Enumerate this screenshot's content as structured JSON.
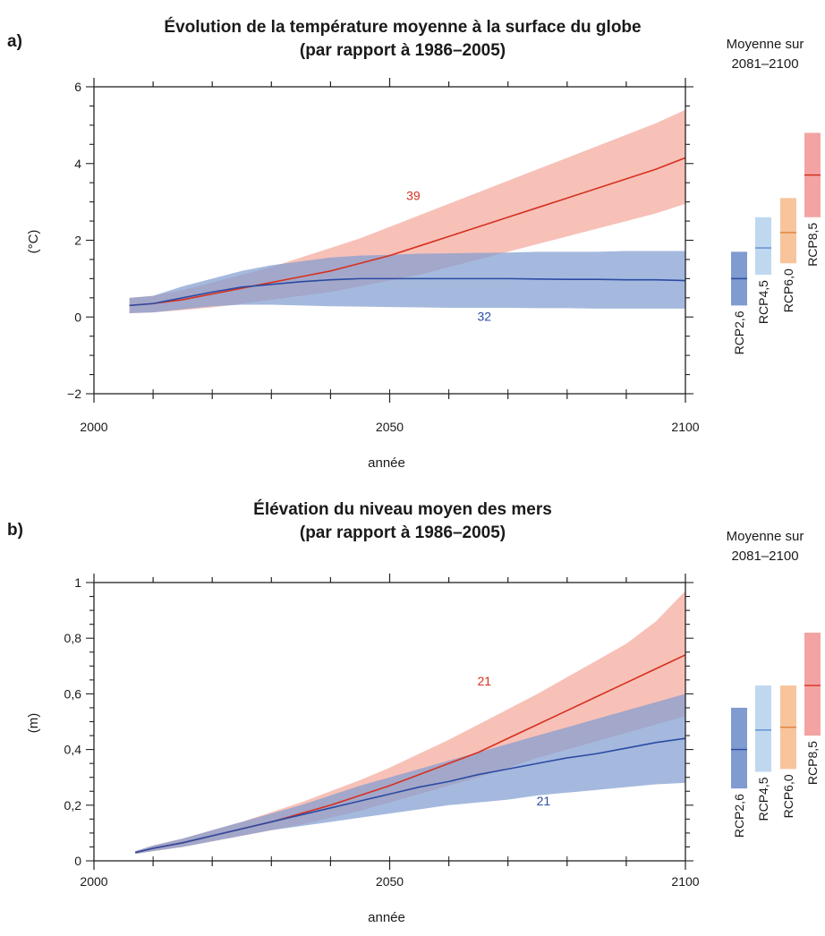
{
  "chart_data": [
    {
      "id": "a",
      "type": "area",
      "panel_label": "a)",
      "title_line1": "Évolution de la température moyenne à la surface du globe",
      "title_line2": "(par rapport à 1986–2005)",
      "xlabel": "année",
      "ylabel": "(°C)",
      "xlim": [
        2000,
        2100
      ],
      "ylim": [
        -2,
        6
      ],
      "xticks": [
        2000,
        2050,
        2100
      ],
      "xtick_labels": [
        "2000",
        "2050",
        "2100"
      ],
      "yticks": [
        -2,
        0,
        2,
        4,
        6
      ],
      "ytick_labels": [
        "−2",
        "0",
        "2",
        "4",
        "6"
      ],
      "series": [
        {
          "scenario": "RCP8.5",
          "color": "#d7301f",
          "band_color": "#f4a79a",
          "count_label": "39",
          "count_at": [
            2054,
            3.05
          ],
          "x": [
            2006,
            2010,
            2015,
            2020,
            2025,
            2030,
            2035,
            2040,
            2045,
            2050,
            2055,
            2060,
            2065,
            2070,
            2075,
            2080,
            2085,
            2090,
            2095,
            2100
          ],
          "mean": [
            0.3,
            0.35,
            0.45,
            0.6,
            0.75,
            0.9,
            1.05,
            1.2,
            1.4,
            1.6,
            1.85,
            2.1,
            2.35,
            2.6,
            2.85,
            3.1,
            3.35,
            3.6,
            3.85,
            4.15
          ],
          "low": [
            0.1,
            0.12,
            0.18,
            0.25,
            0.35,
            0.45,
            0.55,
            0.65,
            0.8,
            0.95,
            1.1,
            1.3,
            1.5,
            1.7,
            1.9,
            2.1,
            2.3,
            2.5,
            2.7,
            2.95
          ],
          "high": [
            0.5,
            0.55,
            0.7,
            0.9,
            1.1,
            1.3,
            1.55,
            1.8,
            2.05,
            2.35,
            2.65,
            2.95,
            3.25,
            3.55,
            3.85,
            4.15,
            4.45,
            4.75,
            5.05,
            5.4
          ]
        },
        {
          "scenario": "RCP2.6",
          "color": "#2b4ba3",
          "band_color": "#7f9bd0",
          "count_label": "32",
          "count_at": [
            2066,
            -0.1
          ],
          "x": [
            2006,
            2010,
            2015,
            2020,
            2025,
            2030,
            2035,
            2040,
            2045,
            2050,
            2055,
            2060,
            2065,
            2070,
            2075,
            2080,
            2085,
            2090,
            2095,
            2100
          ],
          "mean": [
            0.3,
            0.35,
            0.5,
            0.65,
            0.78,
            0.85,
            0.92,
            0.97,
            1.0,
            1.0,
            1.0,
            1.0,
            1.0,
            1.0,
            0.99,
            0.98,
            0.98,
            0.97,
            0.97,
            0.95
          ],
          "low": [
            0.1,
            0.12,
            0.2,
            0.28,
            0.32,
            0.32,
            0.3,
            0.28,
            0.27,
            0.26,
            0.25,
            0.24,
            0.24,
            0.24,
            0.23,
            0.23,
            0.22,
            0.22,
            0.22,
            0.22
          ],
          "high": [
            0.5,
            0.55,
            0.8,
            1.0,
            1.2,
            1.35,
            1.45,
            1.55,
            1.6,
            1.62,
            1.65,
            1.66,
            1.67,
            1.68,
            1.7,
            1.7,
            1.7,
            1.72,
            1.72,
            1.72
          ]
        }
      ],
      "side_title_line1": "Moyenne sur",
      "side_title_line2": "2081–2100",
      "side_bars": [
        {
          "label": "RCP2,6",
          "low": 0.3,
          "high": 1.7,
          "mean": 1.0,
          "color": "#7f9bd0",
          "line": "#2b4ba3"
        },
        {
          "label": "RCP4,5",
          "low": 1.1,
          "high": 2.6,
          "mean": 1.8,
          "color": "#bfd8ef",
          "line": "#5a8ccf"
        },
        {
          "label": "RCP6,0",
          "low": 1.4,
          "high": 3.1,
          "mean": 2.2,
          "color": "#f8c49c",
          "line": "#e08040"
        },
        {
          "label": "RCP8,5",
          "low": 2.6,
          "high": 4.8,
          "mean": 3.7,
          "color": "#f4a3a3",
          "line": "#d7301f"
        }
      ]
    },
    {
      "id": "b",
      "type": "area",
      "panel_label": "b)",
      "title_line1": "Élévation du niveau moyen des mers",
      "title_line2": "(par rapport à 1986–2005)",
      "xlabel": "année",
      "ylabel": "(m)",
      "xlim": [
        2000,
        2100
      ],
      "ylim": [
        0,
        1
      ],
      "xticks": [
        2000,
        2050,
        2100
      ],
      "xtick_labels": [
        "2000",
        "2050",
        "2100"
      ],
      "yticks": [
        0,
        0.2,
        0.4,
        0.6,
        0.8,
        1
      ],
      "ytick_labels": [
        "0",
        "0,2",
        "0,4",
        "0,6",
        "0,8",
        "1"
      ],
      "series": [
        {
          "scenario": "RCP8.5",
          "color": "#d7301f",
          "band_color": "#f4a79a",
          "count_label": "21",
          "count_at": [
            2066,
            0.63
          ],
          "x": [
            2007,
            2010,
            2015,
            2020,
            2025,
            2030,
            2035,
            2040,
            2045,
            2050,
            2055,
            2060,
            2065,
            2070,
            2075,
            2080,
            2085,
            2090,
            2095,
            2100
          ],
          "mean": [
            0.03,
            0.045,
            0.065,
            0.09,
            0.115,
            0.14,
            0.17,
            0.2,
            0.235,
            0.27,
            0.31,
            0.35,
            0.39,
            0.44,
            0.49,
            0.54,
            0.59,
            0.64,
            0.69,
            0.74
          ],
          "low": [
            0.025,
            0.035,
            0.05,
            0.07,
            0.09,
            0.11,
            0.13,
            0.155,
            0.18,
            0.21,
            0.24,
            0.27,
            0.3,
            0.335,
            0.37,
            0.4,
            0.43,
            0.46,
            0.49,
            0.52
          ],
          "high": [
            0.035,
            0.055,
            0.08,
            0.11,
            0.14,
            0.175,
            0.21,
            0.25,
            0.29,
            0.335,
            0.385,
            0.435,
            0.49,
            0.545,
            0.6,
            0.66,
            0.72,
            0.78,
            0.86,
            0.97
          ]
        },
        {
          "scenario": "RCP2.6",
          "color": "#2b4ba3",
          "band_color": "#7f9bd0",
          "count_label": "21",
          "count_at": [
            2076,
            0.2
          ],
          "x": [
            2007,
            2010,
            2015,
            2020,
            2025,
            2030,
            2035,
            2040,
            2045,
            2050,
            2055,
            2060,
            2065,
            2070,
            2075,
            2080,
            2085,
            2090,
            2095,
            2100
          ],
          "mean": [
            0.03,
            0.045,
            0.065,
            0.09,
            0.115,
            0.14,
            0.165,
            0.19,
            0.215,
            0.24,
            0.265,
            0.285,
            0.31,
            0.33,
            0.35,
            0.37,
            0.385,
            0.405,
            0.425,
            0.44
          ],
          "low": [
            0.025,
            0.035,
            0.05,
            0.07,
            0.09,
            0.11,
            0.125,
            0.14,
            0.155,
            0.17,
            0.185,
            0.2,
            0.21,
            0.22,
            0.235,
            0.245,
            0.255,
            0.265,
            0.275,
            0.28
          ],
          "high": [
            0.035,
            0.055,
            0.08,
            0.11,
            0.14,
            0.17,
            0.2,
            0.235,
            0.27,
            0.3,
            0.33,
            0.36,
            0.39,
            0.42,
            0.45,
            0.48,
            0.51,
            0.54,
            0.57,
            0.6
          ]
        }
      ],
      "side_title_line1": "Moyenne sur",
      "side_title_line2": "2081–2100",
      "side_bars": [
        {
          "label": "RCP2,6",
          "low": 0.26,
          "high": 0.55,
          "mean": 0.4,
          "color": "#7f9bd0",
          "line": "#2b4ba3"
        },
        {
          "label": "RCP4,5",
          "low": 0.32,
          "high": 0.63,
          "mean": 0.47,
          "color": "#bfd8ef",
          "line": "#5a8ccf"
        },
        {
          "label": "RCP6,0",
          "low": 0.33,
          "high": 0.63,
          "mean": 0.48,
          "color": "#f8c49c",
          "line": "#e08040"
        },
        {
          "label": "RCP8,5",
          "low": 0.45,
          "high": 0.82,
          "mean": 0.63,
          "color": "#f4a3a3",
          "line": "#d7301f"
        }
      ]
    }
  ]
}
